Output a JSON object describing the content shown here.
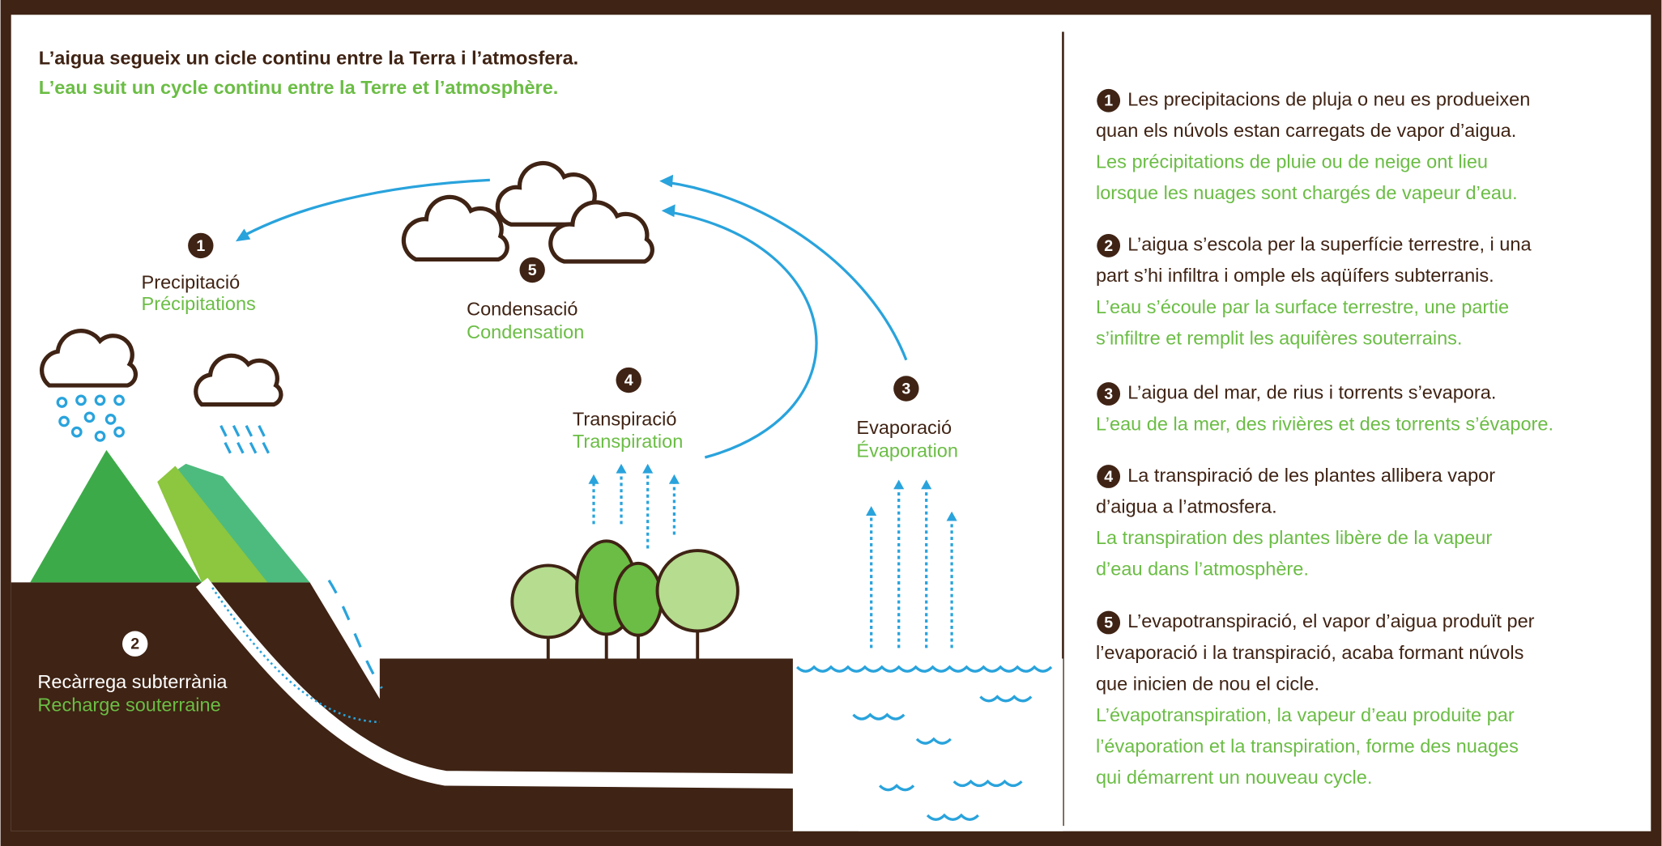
{
  "intro": {
    "ca": "L’aigua segueix un cicle continu entre la Terra i l’atmosfera.",
    "fr": "L’eau suit un cycle continu entre la Terre et l’atmosphère."
  },
  "stages": [
    {
      "number": "1",
      "ca": "Precipitació",
      "fr": "Précipitations"
    },
    {
      "number": "2",
      "ca": "Recàrrega subterrània",
      "fr": "Recharge souterraine"
    },
    {
      "number": "3",
      "ca": "Evaporació",
      "fr": "Évaporation"
    },
    {
      "number": "4",
      "ca": "Transpiració",
      "fr": "Transpiration"
    },
    {
      "number": "5",
      "ca": "Condensació",
      "fr": "Condensation"
    }
  ],
  "notes": [
    {
      "number": "1",
      "ca": [
        "Les precipitacions de pluja o neu es produeixen",
        "quan els núvols estan carregats de vapor d’aigua."
      ],
      "fr": [
        "Les précipitations de pluie ou de neige ont lieu",
        "lorsque les nuages sont chargés de vapeur d’eau."
      ]
    },
    {
      "number": "2",
      "ca": [
        "L’aigua s’escola per la superfície terrestre, i una",
        "part s’hi infiltra i omple els aqüífers subterranis."
      ],
      "fr": [
        "L’eau s’écoule par la surface terrestre, une partie",
        "s’infiltre et remplit les aquifères souterrains."
      ]
    },
    {
      "number": "3",
      "ca": [
        "L’aigua del mar, de rius i torrents s’evapora."
      ],
      "fr": [
        "L’eau de la mer, des rivières et des torrents s’évapore."
      ]
    },
    {
      "number": "4",
      "ca": [
        "La transpiració de les plantes allibera vapor",
        "d’aigua a l’atmosfera."
      ],
      "fr": [
        "La transpiration des plantes libère de la vapeur",
        "d’eau dans l’atmosphère."
      ]
    },
    {
      "number": "5",
      "ca": [
        "L’evapotranspiració, el vapor d’aigua produït per",
        "l’evaporació i la transpiració, acaba formant núvols",
        "que inicien de nou el cicle."
      ],
      "fr": [
        "L’évapotranspiration, la vapeur d’eau produite par",
        "l’évaporation et la transpiration, forme des nuages",
        "qui démarrent un nouveau cycle."
      ]
    }
  ]
}
